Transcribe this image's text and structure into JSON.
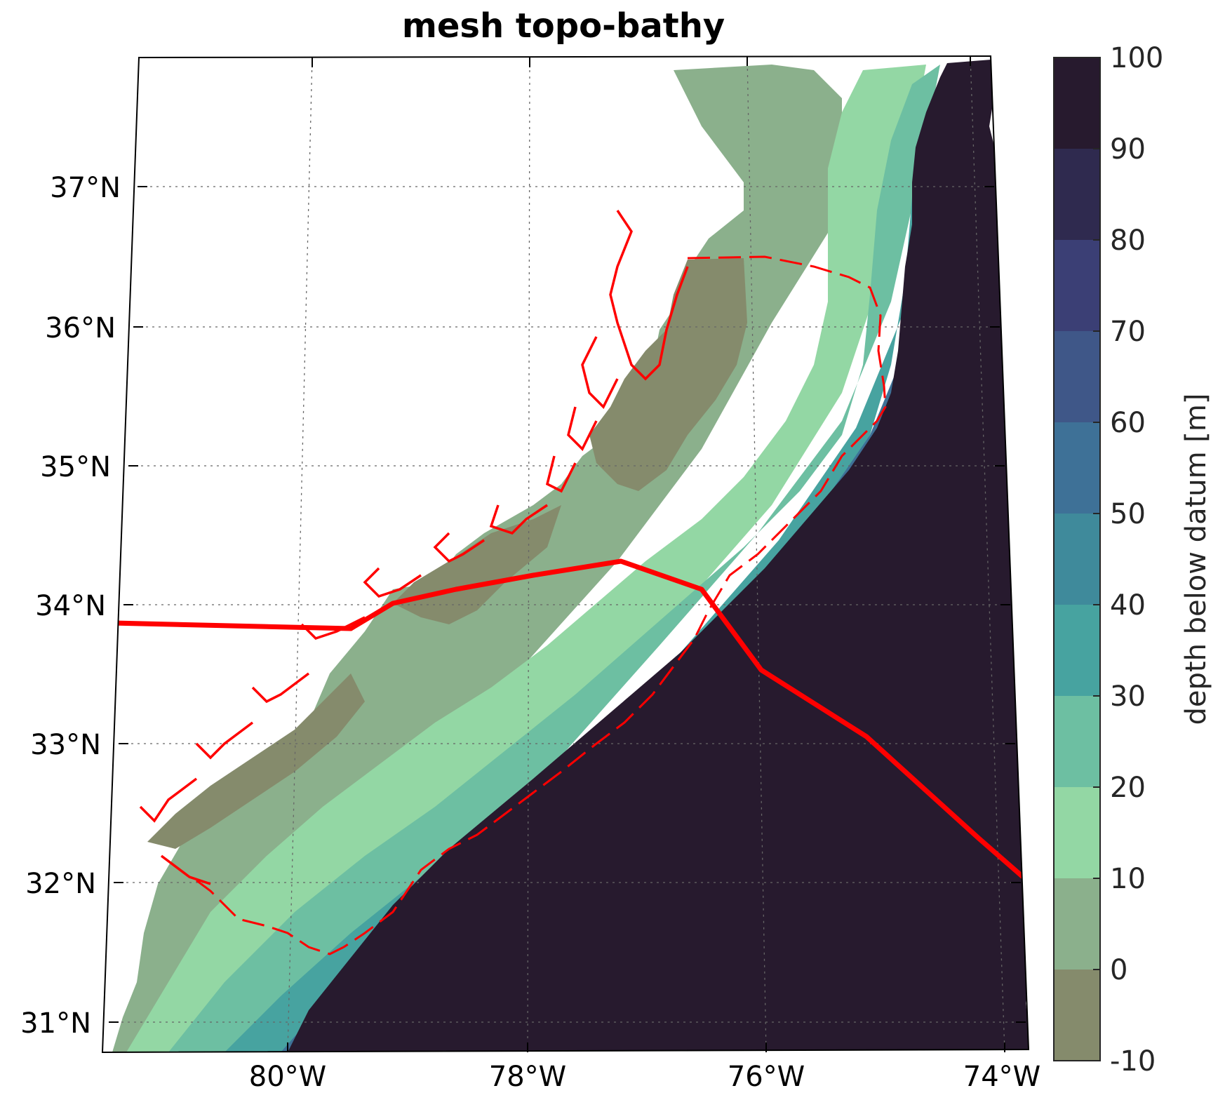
{
  "title": "mesh topo-bathy",
  "lat_labels": [
    "37°N",
    "36°N",
    "35°N",
    "34°N",
    "33°N",
    "32°N",
    "31°N"
  ],
  "lon_labels": [
    "80°W",
    "78°W",
    "76°W",
    "74°W"
  ],
  "colorbar": {
    "label": "depth below datum [m]",
    "ticks": [
      "100",
      "90",
      "80",
      "70",
      "60",
      "50",
      "40",
      "30",
      "20",
      "10",
      "0",
      "-10"
    ],
    "colors": [
      "#271a2e",
      "#2f2a4f",
      "#3b3f75",
      "#3f5788",
      "#3e7197",
      "#3f8a9b",
      "#47a3a0",
      "#6dbfa2",
      "#93d7a4",
      "#8bb08c",
      "#858b6c"
    ],
    "range": [
      -10,
      100
    ]
  },
  "legend_colors": {
    "land_contour": "#ff0000",
    "track": "#ff0000"
  }
}
